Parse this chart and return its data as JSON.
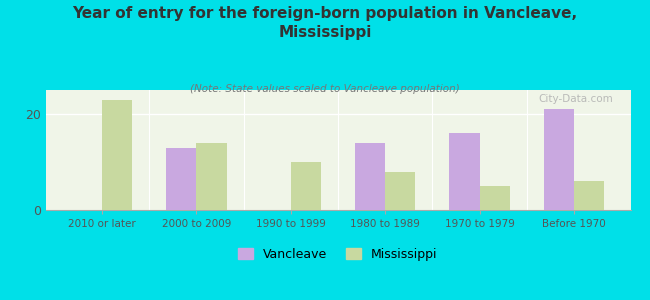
{
  "title": "Year of entry for the foreign-born population in Vancleave,\nMississippi",
  "subtitle": "(Note: State values scaled to Vancleave population)",
  "categories": [
    "2010 or later",
    "2000 to 2009",
    "1990 to 1999",
    "1980 to 1989",
    "1970 to 1979",
    "Before 1970"
  ],
  "vancleave": [
    0,
    13,
    0,
    14,
    16,
    21
  ],
  "mississippi": [
    23,
    14,
    10,
    8,
    5,
    6
  ],
  "vancleave_color": "#c9a8e0",
  "mississippi_color": "#c8d9a0",
  "plot_bg_color": "#f0f5e8",
  "outer_background": "#00e0e8",
  "ylim": [
    0,
    25
  ],
  "yticks": [
    0,
    20
  ],
  "bar_width": 0.32,
  "watermark": "City-Data.com"
}
